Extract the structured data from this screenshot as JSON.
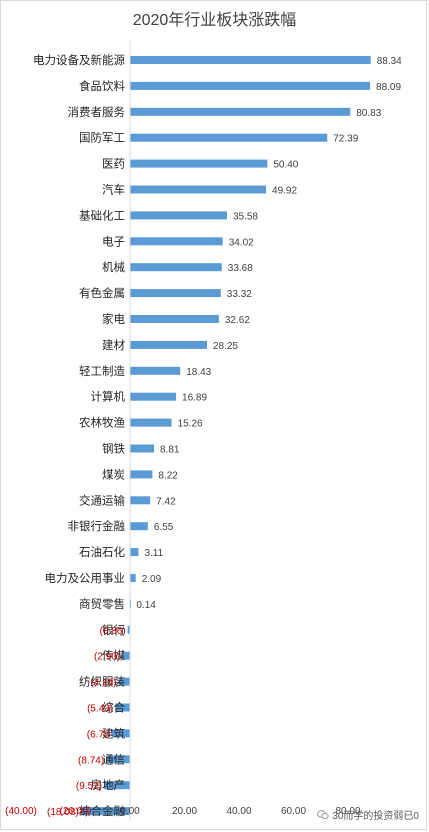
{
  "chart_data": {
    "type": "bar",
    "orientation": "horizontal",
    "title": "2020年行业板块涨跌幅",
    "categories": [
      "电力设备及新能源",
      "食品饮料",
      "消费者服务",
      "国防军工",
      "医药",
      "汽车",
      "基础化工",
      "电子",
      "机械",
      "有色金属",
      "家电",
      "建材",
      "轻工制造",
      "计算机",
      "农林牧渔",
      "钢铁",
      "煤炭",
      "交通运输",
      "非银行金融",
      "石油石化",
      "电力及公用事业",
      "商贸零售",
      "银行",
      "传媒",
      "纺织服装",
      "综合",
      "建筑",
      "通信",
      "房地产",
      "综合金融"
    ],
    "values": [
      88.34,
      88.09,
      80.83,
      72.39,
      50.4,
      49.92,
      35.58,
      34.02,
      33.68,
      33.32,
      32.62,
      28.25,
      18.43,
      16.89,
      15.26,
      8.81,
      8.22,
      7.42,
      6.55,
      3.11,
      2.09,
      0.14,
      -0.86,
      -2.9,
      -4.18,
      -5.43,
      -6.76,
      -8.74,
      -9.52,
      -18.08
    ],
    "value_labels": [
      "88.34",
      "88.09",
      "80.83",
      "72.39",
      "50.40",
      "49.92",
      "35.58",
      "34.02",
      "33.68",
      "33.32",
      "32.62",
      "28.25",
      "18.43",
      "16.89",
      "15.26",
      "8.81",
      "8.22",
      "7.42",
      "6.55",
      "3.11",
      "2.09",
      "0.14",
      "(0.86)",
      "(2.90)",
      "(4.18)",
      "(5.43)",
      "(6.76",
      "(8.74)",
      "(9.52)",
      "(18.08)"
    ],
    "xlim": [
      -40,
      100
    ],
    "xticks": [
      -40,
      -20,
      0,
      20,
      40,
      60,
      80
    ],
    "xtick_labels": [
      "(40.00)",
      "(20.00)",
      "0.00",
      "20.00",
      "40.00",
      "60.00",
      "80.00"
    ],
    "xlabel": "",
    "ylabel": "",
    "grid": false,
    "legend": "none",
    "bar_color": "#5b9bd5",
    "negative_label_color": "#c00000"
  },
  "watermark": {
    "text": "30而学的投资弱已0",
    "icon": "wechat-icon"
  }
}
